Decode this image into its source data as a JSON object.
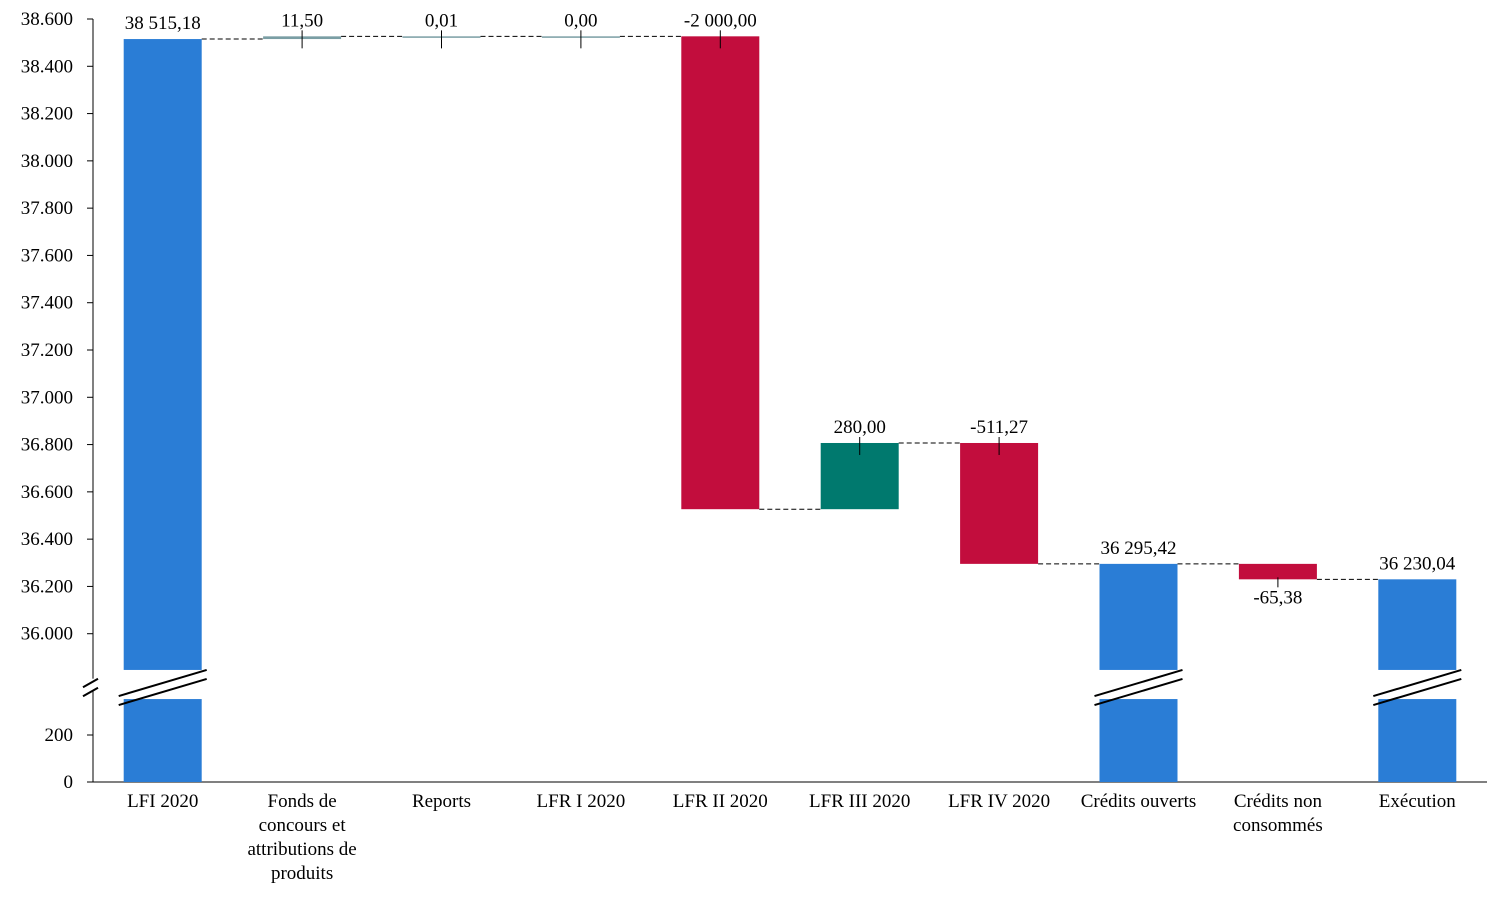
{
  "chart_data": {
    "type": "waterfall",
    "categories": [
      "LFI 2020",
      "Fonds de concours et attributions de produits",
      "Reports",
      "LFR I 2020",
      "LFR II 2020",
      "LFR III 2020",
      "LFR IV 2020",
      "Crédits ouverts",
      "Crédits non consommés",
      "Exécution"
    ],
    "values": [
      38515.18,
      11.5,
      0.01,
      0,
      -2000,
      280,
      -511.27,
      36295.42,
      -65.38,
      36230.04
    ],
    "value_labels": [
      "38 515,18",
      "11,50",
      "0,01",
      "0,00",
      "-2 000,00",
      "280,00",
      "-511,27",
      "36 295,42",
      "-65,38",
      "36 230,04"
    ],
    "measure": [
      "total",
      "relative",
      "relative",
      "relative",
      "relative",
      "relative",
      "relative",
      "total",
      "relative",
      "total"
    ],
    "colors": [
      "#2a7dd6",
      "#7a9ea4",
      "#7a9ea4",
      "#7a9ea4",
      "#c20d3d",
      "#00796e",
      "#c20d3d",
      "#2a7dd6",
      "#c20d3d",
      "#2a7dd6"
    ],
    "ylim": [
      0,
      38600
    ],
    "axis_break": [
      400,
      35800
    ],
    "yticks": [
      0,
      200,
      {
        "value": 36000,
        "label": "36.000"
      },
      {
        "value": 36200,
        "label": "36.200"
      },
      {
        "value": 36400,
        "label": "36.400"
      },
      {
        "value": 36600,
        "label": "36.600"
      },
      {
        "value": 36800,
        "label": "36.800"
      },
      {
        "value": 37000,
        "label": "37.000"
      },
      {
        "value": 37200,
        "label": "37.200"
      },
      {
        "value": 37400,
        "label": "37.400"
      },
      {
        "value": 37600,
        "label": "37.600"
      },
      {
        "value": 37800,
        "label": "37.800"
      },
      {
        "value": 38000,
        "label": "38.000"
      },
      {
        "value": 38200,
        "label": "38.200"
      },
      {
        "value": 38400,
        "label": "38.400"
      },
      {
        "value": 38600,
        "label": "38.600"
      }
    ]
  }
}
